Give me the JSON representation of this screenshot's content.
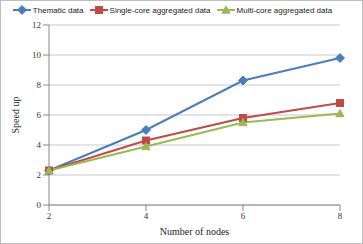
{
  "chart_data": {
    "type": "line",
    "x_label": "Number of nodes",
    "y_label": "Speed up",
    "categories": [
      "2",
      "4",
      "6",
      "8"
    ],
    "series": [
      {
        "name": "Thematic data",
        "color": "#4a7ebb",
        "marker": "diamond",
        "values": [
          2.3,
          5.0,
          8.3,
          9.8
        ]
      },
      {
        "name": "Single-core aggregated data",
        "color": "#be4b48",
        "marker": "square",
        "values": [
          2.3,
          4.3,
          5.8,
          6.8
        ]
      },
      {
        "name": "Multi-core aggregated data",
        "color": "#98b954",
        "marker": "triangle",
        "values": [
          2.3,
          3.9,
          5.5,
          6.1
        ]
      }
    ],
    "ylim": [
      0,
      12
    ],
    "yticks": [
      0,
      2,
      4,
      6,
      8,
      10,
      12
    ],
    "grid": true,
    "legend": "top"
  }
}
